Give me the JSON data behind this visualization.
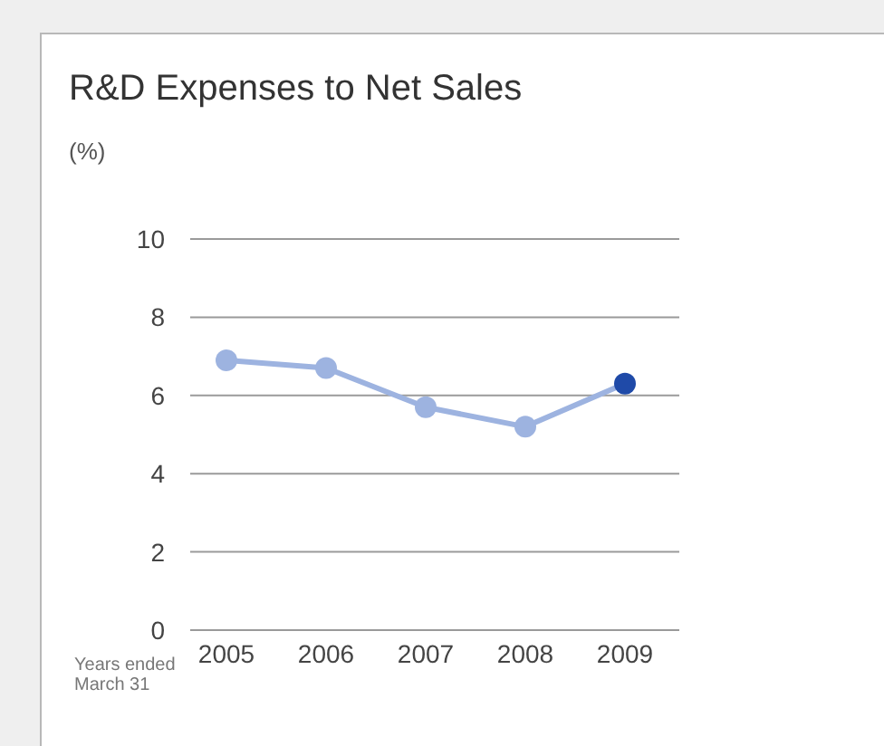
{
  "chart_data": {
    "type": "line",
    "title": "R&D Expenses to Net Sales",
    "ylabel": "(%)",
    "annotations": [
      "Years ended\nMarch 31"
    ],
    "categories": [
      "2005",
      "2006",
      "2007",
      "2008",
      "2009"
    ],
    "series": [
      {
        "color": "#9db3e0",
        "colors": [
          "#9db3e0",
          "#9db3e0",
          "#9db3e0",
          "#9db3e0",
          "#1f4aa8"
        ],
        "values": [
          6.9,
          6.7,
          5.7,
          5.2,
          6.3
        ]
      }
    ],
    "ylim": [
      0,
      10
    ],
    "yticks": [
      0,
      2,
      4,
      6,
      8,
      10
    ],
    "grid": "y",
    "legend": false,
    "marker": "circle",
    "line_style": "solid"
  }
}
